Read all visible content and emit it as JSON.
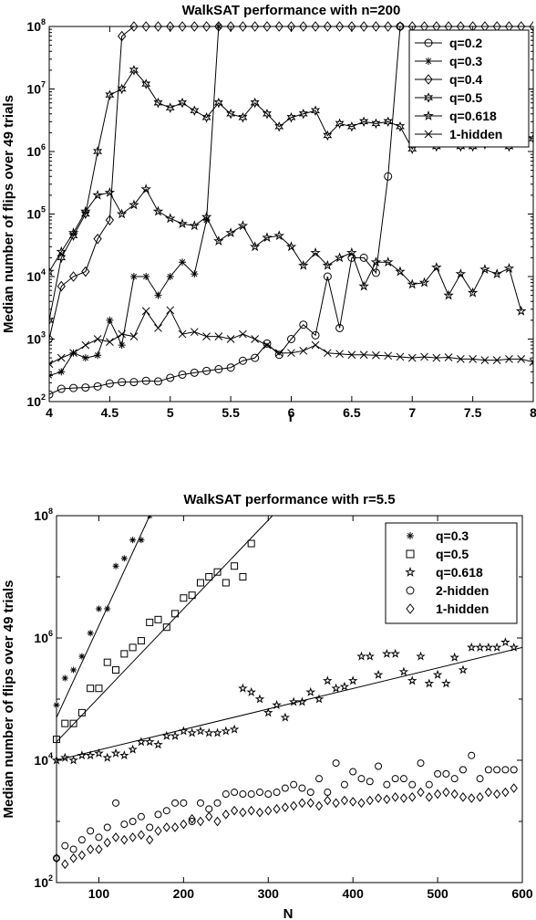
{
  "chart_data": [
    {
      "type": "line",
      "title": "WalkSAT performance with n=200",
      "xlabel": "r",
      "ylabel": "Median number of flips over 49 trials",
      "xlim": [
        4,
        8
      ],
      "ylim": [
        100,
        100000000
      ],
      "yscale": "log",
      "grid": false,
      "legend_position": "top-right",
      "x_ticks": [
        "4",
        "4.5",
        "5",
        "5.5",
        "6",
        "6.5",
        "7",
        "7.5",
        "8"
      ],
      "y_ticks": [
        {
          "base": "10",
          "exp": "2"
        },
        {
          "base": "10",
          "exp": "3"
        },
        {
          "base": "10",
          "exp": "4"
        },
        {
          "base": "10",
          "exp": "5"
        },
        {
          "base": "10",
          "exp": "6"
        },
        {
          "base": "10",
          "exp": "7"
        },
        {
          "base": "10",
          "exp": "8"
        }
      ],
      "series": [
        {
          "name": "q=0.2",
          "marker": "circle",
          "x": [
            4.0,
            4.1,
            4.2,
            4.3,
            4.4,
            4.5,
            4.6,
            4.7,
            4.8,
            4.9,
            5.0,
            5.1,
            5.2,
            5.3,
            5.4,
            5.5,
            5.6,
            5.7,
            5.8,
            5.9,
            6.0,
            6.1,
            6.2,
            6.3,
            6.4,
            6.5,
            6.6,
            6.7,
            6.8,
            6.9
          ],
          "y": [
            130,
            160,
            165,
            168,
            175,
            195,
            205,
            205,
            215,
            210,
            240,
            270,
            290,
            310,
            330,
            350,
            450,
            500,
            850,
            560,
            1000,
            1700,
            1150,
            10000,
            1500,
            20000,
            20000,
            11500,
            400000,
            100000000
          ]
        },
        {
          "name": "q=0.3",
          "marker": "asterisk",
          "x": [
            4.0,
            4.1,
            4.2,
            4.3,
            4.4,
            4.5,
            4.6,
            4.7,
            4.8,
            4.9,
            5.0,
            5.1,
            5.2,
            5.3,
            5.4
          ],
          "y": [
            260,
            300,
            600,
            500,
            550,
            2000,
            800,
            10000,
            10000,
            5000,
            10000,
            17000,
            11000,
            80000,
            100000000
          ]
        },
        {
          "name": "q=0.4",
          "marker": "diamond",
          "x": [
            4.0,
            4.1,
            4.2,
            4.3,
            4.4,
            4.5,
            4.6,
            4.7,
            4.8,
            4.9,
            5.0,
            5.1,
            5.2,
            5.3,
            5.4,
            5.5,
            5.6,
            5.7,
            5.8,
            5.9,
            6.0,
            6.1,
            6.2,
            6.3,
            6.4,
            6.5,
            6.6,
            6.7,
            6.8,
            6.9,
            7.0,
            7.1,
            7.2,
            7.3,
            7.4,
            7.5,
            7.6,
            7.7,
            7.8,
            7.9,
            8.0
          ],
          "y": [
            1000,
            7000,
            10000,
            12000,
            40000,
            80000,
            70000000,
            100000000,
            100000000,
            100000000,
            100000000,
            100000000,
            100000000,
            100000000,
            100000000,
            100000000,
            100000000,
            100000000,
            100000000,
            100000000,
            100000000,
            100000000,
            100000000,
            100000000,
            100000000,
            100000000,
            100000000,
            100000000,
            100000000,
            100000000,
            100000000,
            100000000,
            100000000,
            100000000,
            100000000,
            100000000,
            100000000,
            100000000,
            100000000,
            100000000,
            100000000
          ]
        },
        {
          "name": "q=0.5",
          "marker": "star6",
          "x": [
            4.0,
            4.1,
            4.2,
            4.3,
            4.4,
            4.5,
            4.6,
            4.7,
            4.8,
            4.9,
            5.0,
            5.1,
            5.2,
            5.3,
            5.4,
            5.5,
            5.6,
            5.7,
            5.8,
            5.9,
            6.0,
            6.1,
            6.2,
            6.3,
            6.4,
            6.5,
            6.6,
            6.7,
            6.8,
            6.9,
            7.0,
            7.1,
            7.2,
            7.3,
            7.4,
            7.5,
            7.6,
            7.7,
            7.8,
            7.9,
            8.0
          ],
          "y": [
            2000,
            20000,
            45000,
            100000,
            1000000,
            8000000,
            10000000,
            20000000,
            12000000,
            6000000,
            5000000,
            6000000,
            4500000,
            3500000,
            6000000,
            4000000,
            3500000,
            6000000,
            4000000,
            2500000,
            3500000,
            4000000,
            4500000,
            1800000,
            2800000,
            2500000,
            3000000,
            2800000,
            3000000,
            2500000,
            1100000,
            2200000,
            1200000,
            2500000,
            1200000,
            1200000,
            1300000,
            1800000,
            1200000,
            1800000,
            1600000
          ]
        },
        {
          "name": "q=0.618",
          "marker": "star5",
          "x": [
            4.0,
            4.1,
            4.2,
            4.3,
            4.4,
            4.5,
            4.6,
            4.7,
            4.8,
            4.9,
            5.0,
            5.1,
            5.2,
            5.3,
            5.4,
            5.5,
            5.6,
            5.7,
            5.8,
            5.9,
            6.0,
            6.1,
            6.2,
            6.3,
            6.4,
            6.5,
            6.6,
            6.7,
            6.8,
            6.9,
            7.0,
            7.1,
            7.2,
            7.3,
            7.4,
            7.5,
            7.6,
            7.7,
            7.8,
            7.9
          ],
          "y": [
            12000,
            25000,
            50000,
            110000,
            200000,
            220000,
            100000,
            140000,
            250000,
            110000,
            85000,
            70000,
            65000,
            90000,
            37000,
            50000,
            65000,
            30000,
            42000,
            45000,
            30000,
            15000,
            24000,
            15000,
            20000,
            24000,
            7000,
            17000,
            17000,
            12000,
            7500,
            8000,
            14000,
            5000,
            11000,
            5500,
            13000,
            11000,
            13500,
            2800
          ]
        },
        {
          "name": "1-hidden",
          "marker": "x",
          "x": [
            4.0,
            4.1,
            4.2,
            4.3,
            4.4,
            4.5,
            4.6,
            4.7,
            4.8,
            4.9,
            5.0,
            5.1,
            5.2,
            5.3,
            5.4,
            5.5,
            5.6,
            5.7,
            5.8,
            5.9,
            6.0,
            6.1,
            6.2,
            6.3,
            6.4,
            6.5,
            6.6,
            6.7,
            6.8,
            6.9,
            7.0,
            7.1,
            7.2,
            7.3,
            7.4,
            7.5,
            7.6,
            7.7,
            7.8,
            7.9,
            8.0
          ],
          "y": [
            400,
            500,
            600,
            800,
            1000,
            900,
            1200,
            1100,
            2800,
            1500,
            2900,
            1200,
            1300,
            1100,
            1100,
            1000,
            1200,
            1000,
            800,
            600,
            600,
            650,
            800,
            600,
            580,
            560,
            560,
            550,
            540,
            520,
            500,
            520,
            500,
            510,
            480,
            480,
            460,
            460,
            480,
            480,
            430
          ]
        }
      ]
    },
    {
      "type": "scatter",
      "title": "WalkSAT performance with r=5.5",
      "xlabel": "N",
      "ylabel": "Median number of flips over 49 trials",
      "xlim": [
        50,
        600
      ],
      "ylim": [
        100,
        100000000
      ],
      "yscale": "log",
      "grid": false,
      "legend_position": "top-right",
      "x_ticks": [
        "100",
        "200",
        "300",
        "400",
        "500",
        "600"
      ],
      "y_ticks": [
        {
          "base": "10",
          "exp": "2"
        },
        {
          "base": "10",
          "exp": "4"
        },
        {
          "base": "10",
          "exp": "6"
        },
        {
          "base": "10",
          "exp": "8"
        }
      ],
      "fit_lines": [
        {
          "series": "q=0.3",
          "x": [
            50,
            160
          ],
          "y": [
            50000,
            100000000
          ]
        },
        {
          "series": "q=0.5",
          "x": [
            50,
            305
          ],
          "y": [
            20000,
            100000000
          ]
        },
        {
          "series": "q=0.618",
          "x": [
            50,
            600
          ],
          "y": [
            10000,
            700000
          ]
        }
      ],
      "series": [
        {
          "name": "q=0.3",
          "marker": "asterisk",
          "x": [
            50,
            60,
            70,
            80,
            90,
            100,
            110,
            120,
            130,
            140,
            150,
            160
          ],
          "y": [
            80000,
            220000,
            300000,
            500000,
            1200000,
            3000000,
            3000000,
            15000000,
            20000000,
            40000000,
            40000000,
            100000000
          ]
        },
        {
          "name": "q=0.5",
          "marker": "square",
          "x": [
            50,
            60,
            70,
            80,
            90,
            100,
            110,
            120,
            130,
            140,
            150,
            160,
            170,
            180,
            190,
            200,
            210,
            220,
            230,
            240,
            250,
            260,
            270,
            280
          ],
          "y": [
            22000,
            40000,
            40000,
            60000,
            150000,
            150000,
            400000,
            300000,
            550000,
            700000,
            900000,
            1800000,
            2000000,
            1500000,
            2500000,
            4500000,
            5000000,
            8000000,
            10000000,
            12000000,
            8000000,
            15000000,
            10000000,
            35000000
          ]
        },
        {
          "name": "q=0.618",
          "marker": "star5",
          "x": [
            50,
            60,
            70,
            80,
            90,
            100,
            110,
            120,
            130,
            140,
            150,
            160,
            170,
            180,
            190,
            200,
            210,
            220,
            230,
            240,
            250,
            260,
            270,
            280,
            290,
            300,
            310,
            320,
            330,
            340,
            350,
            360,
            370,
            380,
            390,
            400,
            410,
            420,
            430,
            440,
            450,
            460,
            470,
            480,
            490,
            500,
            510,
            520,
            530,
            540,
            550,
            560,
            570,
            580,
            590
          ],
          "y": [
            10000,
            11000,
            10000,
            12000,
            12000,
            13000,
            11000,
            13000,
            12000,
            15000,
            20000,
            20000,
            18000,
            25000,
            25000,
            30000,
            28000,
            30000,
            28000,
            28000,
            30000,
            32000,
            150000,
            130000,
            100000,
            60000,
            80000,
            50000,
            90000,
            90000,
            130000,
            100000,
            200000,
            150000,
            160000,
            200000,
            500000,
            500000,
            250000,
            550000,
            550000,
            280000,
            200000,
            500000,
            180000,
            250000,
            180000,
            480000,
            300000,
            700000,
            700000,
            700000,
            700000,
            850000,
            700000
          ]
        },
        {
          "name": "2-hidden",
          "marker": "circle",
          "x": [
            50,
            60,
            70,
            80,
            90,
            100,
            110,
            120,
            130,
            140,
            150,
            160,
            170,
            180,
            190,
            200,
            210,
            220,
            230,
            240,
            250,
            260,
            270,
            280,
            290,
            300,
            310,
            320,
            330,
            340,
            350,
            360,
            370,
            380,
            390,
            400,
            410,
            420,
            430,
            440,
            450,
            460,
            470,
            480,
            490,
            500,
            510,
            520,
            530,
            540,
            550,
            560,
            570,
            580,
            590
          ],
          "y": [
            250,
            400,
            350,
            500,
            700,
            550,
            800,
            2000,
            900,
            1000,
            1200,
            800,
            1300,
            1500,
            2000,
            2000,
            1000,
            2000,
            1600,
            2000,
            2800,
            3000,
            2800,
            2800,
            3000,
            2800,
            3000,
            3500,
            4000,
            3500,
            3000,
            5000,
            3000,
            9000,
            4000,
            6500,
            5000,
            4500,
            8000,
            4000,
            5000,
            5000,
            4000,
            9000,
            4000,
            6000,
            6000,
            5000,
            7000,
            12000,
            5000,
            7000,
            7000,
            7000,
            7000
          ]
        },
        {
          "name": "1-hidden",
          "marker": "diamond",
          "x": [
            50,
            60,
            70,
            80,
            90,
            100,
            110,
            120,
            130,
            140,
            150,
            160,
            170,
            180,
            190,
            200,
            210,
            220,
            230,
            240,
            250,
            260,
            270,
            280,
            290,
            300,
            310,
            320,
            330,
            340,
            350,
            360,
            370,
            380,
            390,
            400,
            410,
            420,
            430,
            440,
            450,
            460,
            470,
            480,
            490,
            500,
            510,
            520,
            530,
            540,
            550,
            560,
            570,
            580,
            590
          ],
          "y": [
            250,
            200,
            250,
            280,
            350,
            350,
            450,
            550,
            500,
            550,
            600,
            500,
            700,
            800,
            800,
            900,
            1100,
            1000,
            1200,
            1000,
            1300,
            1500,
            1400,
            1500,
            1400,
            1500,
            1600,
            1700,
            1800,
            2000,
            2000,
            1800,
            2200,
            2000,
            2200,
            2100,
            2000,
            2200,
            2400,
            2300,
            2500,
            2400,
            2500,
            3000,
            2500,
            2800,
            3000,
            2800,
            2500,
            2400,
            2500,
            3000,
            2800,
            3000,
            3500
          ]
        }
      ]
    }
  ]
}
